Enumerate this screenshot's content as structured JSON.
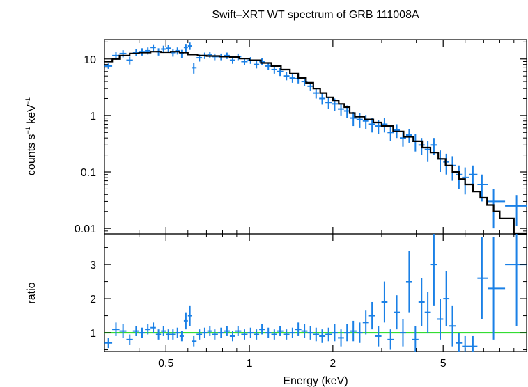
{
  "chart_data": {
    "type": "scatter",
    "title": "Swift–XRT WT spectrum of GRB 111008A",
    "xlabel": "Energy (keV)",
    "x_log": true,
    "xlim": [
      0.3,
      10
    ],
    "x_ticks": [
      "0.5",
      "1",
      "2",
      "5"
    ],
    "x_tick_values": [
      0.5,
      1,
      2,
      5
    ],
    "colors": {
      "data": "#1a80e6",
      "model": "#000000",
      "unity": "#33dd33"
    },
    "panels": [
      {
        "name": "spectrum",
        "ylabel_parts": [
          "counts s",
          "−1",
          " keV",
          "−1"
        ],
        "y_log": true,
        "ylim": [
          0.008,
          22
        ],
        "y_ticks": [
          "10",
          "1",
          "0.1",
          "0.01"
        ],
        "y_tick_values": [
          10,
          1,
          0.1,
          0.01
        ],
        "data": [
          [
            0.31,
            7.5,
            0.8
          ],
          [
            0.33,
            11.5,
            1.8
          ],
          [
            0.35,
            12.5,
            1.8
          ],
          [
            0.37,
            9.5,
            1.5
          ],
          [
            0.39,
            13,
            1.8
          ],
          [
            0.41,
            13.5,
            2
          ],
          [
            0.43,
            14,
            2
          ],
          [
            0.45,
            16,
            2.2
          ],
          [
            0.47,
            13.5,
            2
          ],
          [
            0.49,
            15,
            2.2
          ],
          [
            0.51,
            15.5,
            2.2
          ],
          [
            0.53,
            13,
            2
          ],
          [
            0.55,
            14,
            2
          ],
          [
            0.57,
            12.5,
            2
          ],
          [
            0.59,
            16,
            2.5
          ],
          [
            0.61,
            17,
            2.5
          ],
          [
            0.63,
            7,
            1.5
          ],
          [
            0.66,
            10.5,
            1.5
          ],
          [
            0.69,
            11.5,
            1.5
          ],
          [
            0.72,
            12,
            1.5
          ],
          [
            0.75,
            11,
            1.5
          ],
          [
            0.79,
            11,
            1.5
          ],
          [
            0.83,
            11.5,
            1.5
          ],
          [
            0.87,
            9.5,
            1.3
          ],
          [
            0.91,
            11,
            1.5
          ],
          [
            0.96,
            9,
            1.3
          ],
          [
            1.01,
            9.5,
            1.3
          ],
          [
            1.06,
            8,
            1.2
          ],
          [
            1.11,
            9,
            1.3
          ],
          [
            1.17,
            7.5,
            1.1
          ],
          [
            1.23,
            6.5,
            1
          ],
          [
            1.29,
            6,
            1
          ],
          [
            1.36,
            5,
            0.8
          ],
          [
            1.43,
            4.6,
            0.8
          ],
          [
            1.5,
            4.5,
            0.8
          ],
          [
            1.58,
            4,
            0.7
          ],
          [
            1.66,
            3.3,
            0.6
          ],
          [
            1.74,
            2.5,
            0.5
          ],
          [
            1.83,
            2,
            0.45
          ],
          [
            1.93,
            1.7,
            0.4
          ],
          [
            2.03,
            1.6,
            0.4
          ],
          [
            2.14,
            1.3,
            0.3
          ],
          [
            2.25,
            1.2,
            0.3
          ],
          [
            2.37,
            0.9,
            0.25
          ],
          [
            2.5,
            0.85,
            0.25
          ],
          [
            2.63,
            0.8,
            0.22
          ],
          [
            2.77,
            0.7,
            0.2
          ],
          [
            2.92,
            0.65,
            0.18
          ],
          [
            3.07,
            0.7,
            0.2
          ],
          [
            3.23,
            0.5,
            0.15
          ],
          [
            3.4,
            0.55,
            0.15
          ],
          [
            3.58,
            0.4,
            0.12
          ],
          [
            3.77,
            0.45,
            0.12
          ],
          [
            3.97,
            0.35,
            0.12
          ],
          [
            4.18,
            0.3,
            0.1
          ],
          [
            4.4,
            0.25,
            0.1
          ],
          [
            4.63,
            0.3,
            0.1
          ],
          [
            4.88,
            0.17,
            0.07
          ],
          [
            5.13,
            0.15,
            0.06
          ],
          [
            5.4,
            0.13,
            0.06
          ],
          [
            5.7,
            0.09,
            0.04
          ],
          [
            6,
            0.08,
            0.04
          ],
          [
            6.4,
            0.09,
            0.04
          ],
          [
            6.9,
            0.06,
            0.03
          ],
          [
            7.6,
            0.03,
            0.02
          ],
          [
            9.2,
            0.025,
            0.014
          ]
        ],
        "model": [
          [
            0.3,
            9
          ],
          [
            0.32,
            10
          ],
          [
            0.34,
            11.5
          ],
          [
            0.37,
            12.5
          ],
          [
            0.4,
            13
          ],
          [
            0.44,
            13.5
          ],
          [
            0.48,
            13.2
          ],
          [
            0.52,
            13.5
          ],
          [
            0.56,
            13
          ],
          [
            0.6,
            12
          ],
          [
            0.65,
            11.5
          ],
          [
            0.7,
            11.3
          ],
          [
            0.78,
            11
          ],
          [
            0.85,
            10.8
          ],
          [
            0.92,
            10.2
          ],
          [
            1,
            9.5
          ],
          [
            1.1,
            8.5
          ],
          [
            1.2,
            7.5
          ],
          [
            1.3,
            6.5
          ],
          [
            1.4,
            5.5
          ],
          [
            1.5,
            4.6
          ],
          [
            1.6,
            3.8
          ],
          [
            1.7,
            3
          ],
          [
            1.8,
            2.5
          ],
          [
            1.9,
            2.1
          ],
          [
            2,
            1.85
          ],
          [
            2.1,
            1.6
          ],
          [
            2.2,
            1.4
          ],
          [
            2.3,
            1.1
          ],
          [
            2.4,
            0.95
          ],
          [
            2.6,
            0.85
          ],
          [
            2.8,
            0.75
          ],
          [
            3,
            0.65
          ],
          [
            3.3,
            0.52
          ],
          [
            3.6,
            0.42
          ],
          [
            3.9,
            0.35
          ],
          [
            4.2,
            0.27
          ],
          [
            4.5,
            0.22
          ],
          [
            4.8,
            0.17
          ],
          [
            5.1,
            0.13
          ],
          [
            5.4,
            0.1
          ],
          [
            5.7,
            0.075
          ],
          [
            6,
            0.06
          ],
          [
            6.4,
            0.045
          ],
          [
            6.8,
            0.035
          ],
          [
            7.2,
            0.026
          ],
          [
            7.6,
            0.02
          ],
          [
            8,
            0.015
          ],
          [
            8.5,
            0.015
          ],
          [
            9,
            0.008
          ]
        ]
      },
      {
        "name": "ratio",
        "ylabel": "ratio",
        "y_log": false,
        "ylim": [
          0.45,
          3.9
        ],
        "y_ticks": [
          "1",
          "2",
          "3"
        ],
        "y_tick_values": [
          1,
          2,
          3
        ],
        "unity": 1,
        "data": [
          [
            0.31,
            0.7,
            0.15
          ],
          [
            0.33,
            1.1,
            0.2
          ],
          [
            0.35,
            1.05,
            0.2
          ],
          [
            0.37,
            0.8,
            0.15
          ],
          [
            0.39,
            1.05,
            0.15
          ],
          [
            0.41,
            1.0,
            0.15
          ],
          [
            0.43,
            1.1,
            0.15
          ],
          [
            0.45,
            1.15,
            0.15
          ],
          [
            0.47,
            0.95,
            0.15
          ],
          [
            0.49,
            1.05,
            0.15
          ],
          [
            0.51,
            0.95,
            0.15
          ],
          [
            0.53,
            0.95,
            0.15
          ],
          [
            0.55,
            1.0,
            0.15
          ],
          [
            0.57,
            0.9,
            0.15
          ],
          [
            0.59,
            1.35,
            0.25
          ],
          [
            0.61,
            1.5,
            0.3
          ],
          [
            0.63,
            0.75,
            0.15
          ],
          [
            0.66,
            0.95,
            0.15
          ],
          [
            0.69,
            1.0,
            0.15
          ],
          [
            0.72,
            1.05,
            0.15
          ],
          [
            0.75,
            0.95,
            0.15
          ],
          [
            0.79,
            1.0,
            0.15
          ],
          [
            0.83,
            1.05,
            0.15
          ],
          [
            0.87,
            0.9,
            0.15
          ],
          [
            0.91,
            1.05,
            0.15
          ],
          [
            0.96,
            0.95,
            0.15
          ],
          [
            1.01,
            1.0,
            0.15
          ],
          [
            1.06,
            0.95,
            0.15
          ],
          [
            1.11,
            1.1,
            0.15
          ],
          [
            1.17,
            1.0,
            0.15
          ],
          [
            1.23,
            0.95,
            0.15
          ],
          [
            1.29,
            1.05,
            0.15
          ],
          [
            1.36,
            0.95,
            0.15
          ],
          [
            1.43,
            1.0,
            0.15
          ],
          [
            1.5,
            1.1,
            0.2
          ],
          [
            1.58,
            1.05,
            0.2
          ],
          [
            1.66,
            1.0,
            0.2
          ],
          [
            1.74,
            0.95,
            0.2
          ],
          [
            1.83,
            0.9,
            0.2
          ],
          [
            1.93,
            0.95,
            0.2
          ],
          [
            2.03,
            1.0,
            0.25
          ],
          [
            2.14,
            0.85,
            0.25
          ],
          [
            2.25,
            1.0,
            0.25
          ],
          [
            2.37,
            1.05,
            0.3
          ],
          [
            2.5,
            1.0,
            0.3
          ],
          [
            2.63,
            1.3,
            0.35
          ],
          [
            2.77,
            1.5,
            0.4
          ],
          [
            2.92,
            0.9,
            0.3
          ],
          [
            3.07,
            1.9,
            0.6
          ],
          [
            3.23,
            0.8,
            0.3
          ],
          [
            3.4,
            1.6,
            0.5
          ],
          [
            3.58,
            1.0,
            0.4
          ],
          [
            3.77,
            2.5,
            0.9
          ],
          [
            3.97,
            0.8,
            0.4
          ],
          [
            4.18,
            1.9,
            0.7
          ],
          [
            4.4,
            1.6,
            0.6
          ],
          [
            4.63,
            3.0,
            1.2
          ],
          [
            4.88,
            1.4,
            0.6
          ],
          [
            5.13,
            2.0,
            0.8
          ],
          [
            5.4,
            1.2,
            0.6
          ],
          [
            5.7,
            0.7,
            0.3
          ],
          [
            6,
            0.6,
            0.3
          ],
          [
            6.4,
            0.6,
            0.3
          ],
          [
            6.9,
            2.6,
            1.2
          ],
          [
            7.6,
            2.3,
            1.5
          ],
          [
            9.2,
            3.0,
            1.8
          ]
        ]
      }
    ]
  }
}
